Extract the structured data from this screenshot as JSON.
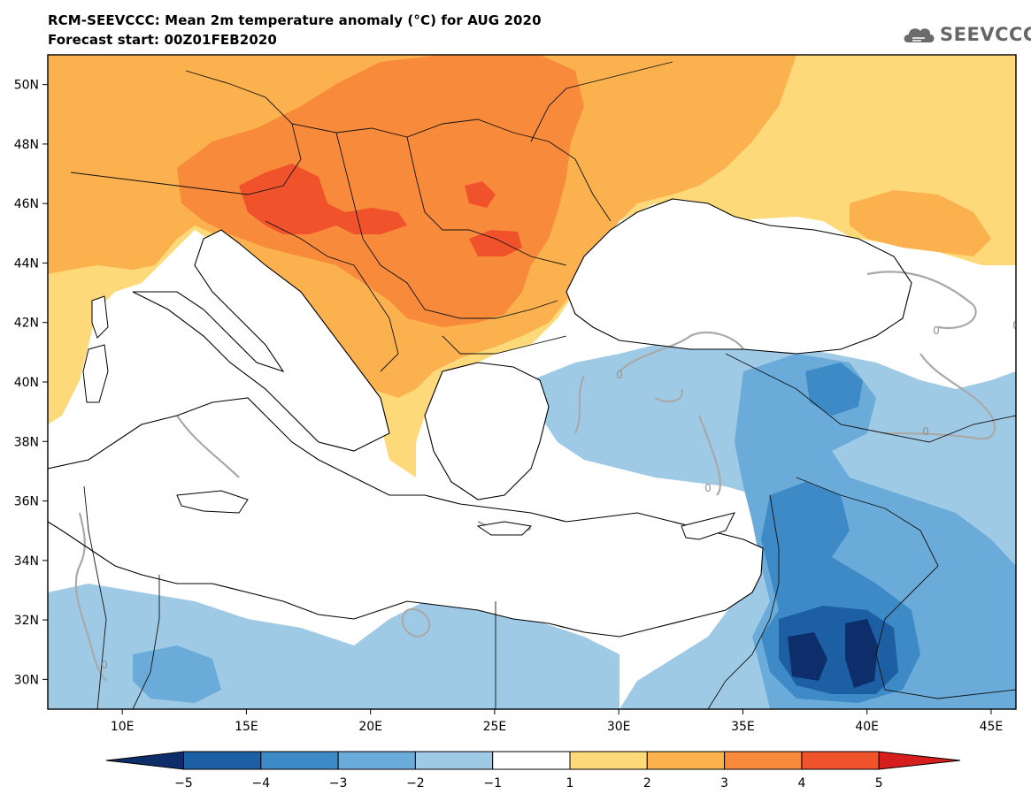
{
  "header": {
    "title": "RCM-SEEVCCC: Mean 2m temperature anomaly (°C) for AUG 2020",
    "subtitle": "Forecast start: 00Z01FEB2020",
    "logo_text": "SEEVCCC",
    "logo_icon": "cloud-icon"
  },
  "map": {
    "lon_range": [
      7,
      46
    ],
    "lat_range": [
      29,
      51
    ],
    "lat_labels": [
      "50N",
      "48N",
      "46N",
      "44N",
      "42N",
      "40N",
      "38N",
      "36N",
      "34N",
      "32N",
      "30N"
    ],
    "lon_labels": [
      "10E",
      "15E",
      "20E",
      "25E",
      "30E",
      "35E",
      "40E",
      "45E"
    ],
    "contour_label": "0"
  },
  "colorbar": {
    "labels": [
      "−5",
      "−4",
      "−3",
      "−2",
      "−1",
      "1",
      "2",
      "3",
      "4",
      "5"
    ],
    "colors": [
      "#0d2d6b",
      "#1d5fa3",
      "#3d8ac6",
      "#6aabd9",
      "#9fcae5",
      "#ffffff",
      "#fed97a",
      "#fbb14d",
      "#f88a3c",
      "#f0522b",
      "#d61f1c"
    ]
  }
}
